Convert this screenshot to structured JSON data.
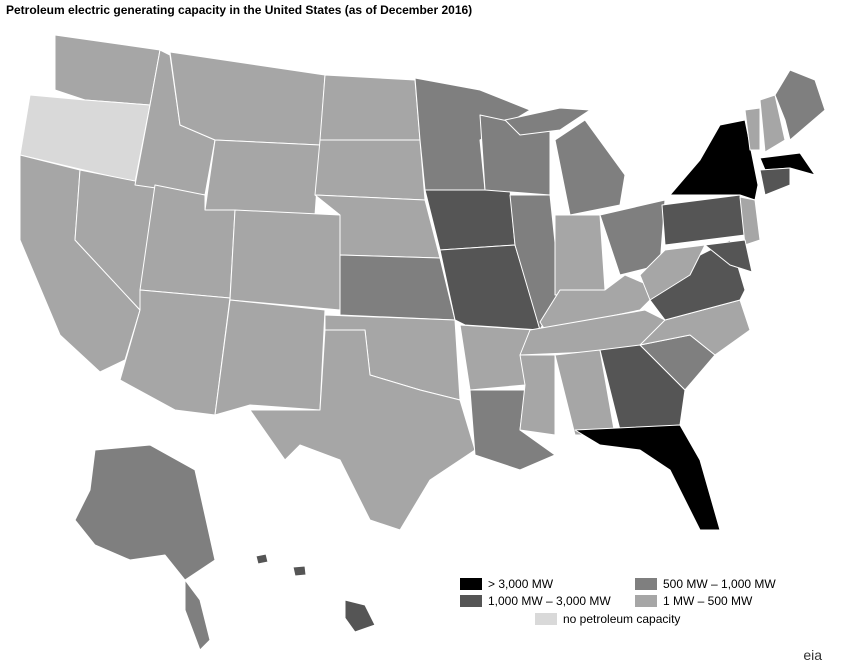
{
  "title": "Petroleum electric generating capacity in the United States (as of December 2016)",
  "legend": {
    "items": [
      {
        "label": "> 3,000 MW",
        "color": "#000000"
      },
      {
        "label": "1,000 MW – 3,000 MW",
        "color": "#555555"
      },
      {
        "label": "500 MW – 1,000 MW",
        "color": "#7f7f7f"
      },
      {
        "label": "1 MW – 500 MW",
        "color": "#a6a6a6"
      },
      {
        "label": "no petroleum capacity",
        "color": "#d9d9d9"
      }
    ]
  },
  "logo": "eia"
}
